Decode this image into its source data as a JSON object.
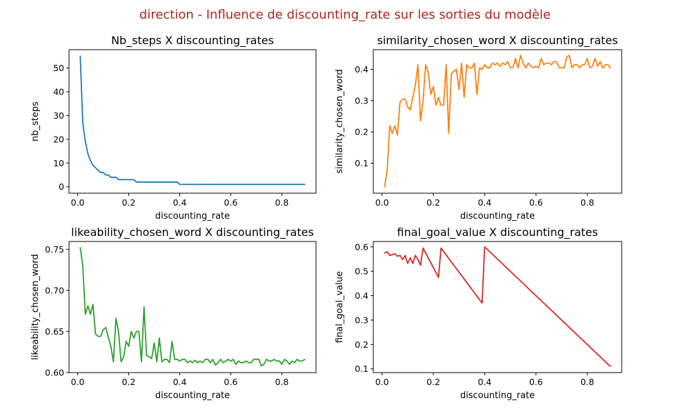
{
  "suptitle": "direction - Influence de discounting_rate sur les sorties du modèle",
  "colors": {
    "suptitle": "#b22222"
  },
  "chart_data": [
    {
      "type": "line",
      "title": "Nb_steps X discounting_rates",
      "xlabel": "discounting_rate",
      "ylabel": "nb_steps",
      "color": "#1f77b4",
      "xlim": [
        -0.034,
        0.934
      ],
      "ylim": [
        -2.7,
        57.7
      ],
      "xticks": [
        0.0,
        0.2,
        0.4,
        0.6,
        0.8
      ],
      "xtick_labels": [
        "0.0",
        "0.2",
        "0.4",
        "0.6",
        "0.8"
      ],
      "yticks": [
        0,
        10,
        20,
        30,
        40,
        50
      ],
      "ytick_labels": [
        "0",
        "10",
        "20",
        "30",
        "40",
        "50"
      ],
      "grid": false,
      "x": [
        0.01,
        0.02,
        0.03,
        0.04,
        0.05,
        0.06,
        0.07,
        0.08,
        0.09,
        0.1,
        0.11,
        0.12,
        0.13,
        0.14,
        0.15,
        0.16,
        0.17,
        0.18,
        0.19,
        0.2,
        0.21,
        0.22,
        0.23,
        0.24,
        0.25,
        0.26,
        0.27,
        0.28,
        0.29,
        0.3,
        0.31,
        0.32,
        0.33,
        0.34,
        0.35,
        0.36,
        0.37,
        0.38,
        0.39,
        0.4,
        0.41,
        0.42,
        0.43,
        0.44,
        0.45,
        0.46,
        0.47,
        0.48,
        0.49,
        0.5,
        0.51,
        0.52,
        0.53,
        0.54,
        0.55,
        0.56,
        0.57,
        0.58,
        0.59,
        0.6,
        0.61,
        0.62,
        0.63,
        0.64,
        0.65,
        0.66,
        0.67,
        0.68,
        0.69,
        0.7,
        0.71,
        0.72,
        0.73,
        0.74,
        0.75,
        0.76,
        0.77,
        0.78,
        0.79,
        0.8,
        0.81,
        0.82,
        0.83,
        0.84,
        0.85,
        0.86,
        0.87,
        0.88,
        0.89
      ],
      "y": [
        55,
        27,
        19,
        14,
        11,
        9,
        8,
        7,
        6,
        6,
        5,
        5,
        4,
        4,
        4,
        3,
        3,
        3,
        3,
        3,
        3,
        3,
        2,
        2,
        2,
        2,
        2,
        2,
        2,
        2,
        2,
        2,
        2,
        2,
        2,
        2,
        2,
        2,
        2,
        1,
        1,
        1,
        1,
        1,
        1,
        1,
        1,
        1,
        1,
        1,
        1,
        1,
        1,
        1,
        1,
        1,
        1,
        1,
        1,
        1,
        1,
        1,
        1,
        1,
        1,
        1,
        1,
        1,
        1,
        1,
        1,
        1,
        1,
        1,
        1,
        1,
        1,
        1,
        1,
        1,
        1,
        1,
        1,
        1,
        1,
        1,
        1,
        1,
        1
      ]
    },
    {
      "type": "line",
      "title": "similarity_chosen_word X discounting_rates",
      "xlabel": "discounting_rate",
      "ylabel": "similarity_chosen_word",
      "color": "#ff7f0e",
      "xlim": [
        -0.034,
        0.934
      ],
      "ylim": [
        0.004,
        0.463
      ],
      "xticks": [
        0.0,
        0.2,
        0.4,
        0.6,
        0.8
      ],
      "xtick_labels": [
        "0.0",
        "0.2",
        "0.4",
        "0.6",
        "0.8"
      ],
      "yticks": [
        0.1,
        0.2,
        0.3,
        0.4
      ],
      "ytick_labels": [
        "0.1",
        "0.2",
        "0.3",
        "0.4"
      ],
      "grid": false,
      "x": [
        0.01,
        0.02,
        0.03,
        0.04,
        0.05,
        0.06,
        0.07,
        0.08,
        0.09,
        0.1,
        0.11,
        0.12,
        0.13,
        0.14,
        0.15,
        0.16,
        0.17,
        0.18,
        0.19,
        0.2,
        0.21,
        0.22,
        0.23,
        0.24,
        0.25,
        0.26,
        0.27,
        0.28,
        0.29,
        0.3,
        0.31,
        0.32,
        0.33,
        0.34,
        0.35,
        0.36,
        0.37,
        0.38,
        0.39,
        0.4,
        0.41,
        0.42,
        0.43,
        0.44,
        0.45,
        0.46,
        0.47,
        0.48,
        0.49,
        0.5,
        0.51,
        0.52,
        0.53,
        0.54,
        0.55,
        0.56,
        0.57,
        0.58,
        0.59,
        0.6,
        0.61,
        0.62,
        0.63,
        0.64,
        0.65,
        0.66,
        0.67,
        0.68,
        0.69,
        0.7,
        0.71,
        0.72,
        0.73,
        0.74,
        0.75,
        0.76,
        0.77,
        0.78,
        0.79,
        0.8,
        0.81,
        0.82,
        0.83,
        0.84,
        0.85,
        0.86,
        0.87,
        0.88,
        0.89
      ],
      "y": [
        0.025,
        0.075,
        0.22,
        0.195,
        0.22,
        0.19,
        0.295,
        0.305,
        0.305,
        0.28,
        0.27,
        0.31,
        0.35,
        0.415,
        0.235,
        0.3,
        0.415,
        0.39,
        0.32,
        0.345,
        0.285,
        0.31,
        0.285,
        0.285,
        0.415,
        0.195,
        0.385,
        0.395,
        0.4,
        0.335,
        0.42,
        0.31,
        0.415,
        0.405,
        0.405,
        0.42,
        0.32,
        0.405,
        0.4,
        0.415,
        0.405,
        0.405,
        0.42,
        0.415,
        0.42,
        0.41,
        0.42,
        0.415,
        0.425,
        0.405,
        0.405,
        0.435,
        0.405,
        0.445,
        0.42,
        0.405,
        0.42,
        0.41,
        0.405,
        0.41,
        0.405,
        0.435,
        0.415,
        0.42,
        0.42,
        0.415,
        0.425,
        0.425,
        0.405,
        0.405,
        0.405,
        0.44,
        0.445,
        0.405,
        0.415,
        0.415,
        0.405,
        0.415,
        0.415,
        0.435,
        0.405,
        0.41,
        0.435,
        0.41,
        0.425,
        0.405,
        0.415,
        0.415,
        0.405
      ]
    },
    {
      "type": "line",
      "title": "likeability_chosen_word X discounting_rates",
      "xlabel": "discounting_rate",
      "ylabel": "likeability_chosen_word",
      "color": "#2ca02c",
      "xlim": [
        -0.034,
        0.934
      ],
      "ylim": [
        0.5999,
        0.7595
      ],
      "xticks": [
        0.0,
        0.2,
        0.4,
        0.6,
        0.8
      ],
      "xtick_labels": [
        "0.0",
        "0.2",
        "0.4",
        "0.6",
        "0.8"
      ],
      "yticks": [
        0.6,
        0.65,
        0.7,
        0.75
      ],
      "ytick_labels": [
        "0.60",
        "0.65",
        "0.70",
        "0.75"
      ],
      "grid": false,
      "x": [
        0.01,
        0.02,
        0.03,
        0.04,
        0.05,
        0.06,
        0.07,
        0.08,
        0.09,
        0.1,
        0.11,
        0.12,
        0.13,
        0.14,
        0.15,
        0.16,
        0.17,
        0.18,
        0.19,
        0.2,
        0.21,
        0.22,
        0.23,
        0.24,
        0.25,
        0.26,
        0.27,
        0.28,
        0.29,
        0.3,
        0.31,
        0.32,
        0.33,
        0.34,
        0.35,
        0.36,
        0.37,
        0.38,
        0.39,
        0.4,
        0.41,
        0.42,
        0.43,
        0.44,
        0.45,
        0.46,
        0.47,
        0.48,
        0.49,
        0.5,
        0.51,
        0.52,
        0.53,
        0.54,
        0.55,
        0.56,
        0.57,
        0.58,
        0.59,
        0.6,
        0.61,
        0.62,
        0.63,
        0.64,
        0.65,
        0.66,
        0.67,
        0.68,
        0.69,
        0.7,
        0.71,
        0.72,
        0.73,
        0.74,
        0.75,
        0.76,
        0.77,
        0.78,
        0.79,
        0.8,
        0.81,
        0.82,
        0.83,
        0.84,
        0.85,
        0.86,
        0.87,
        0.88,
        0.89
      ],
      "y": [
        0.752,
        0.73,
        0.671,
        0.681,
        0.671,
        0.683,
        0.647,
        0.644,
        0.644,
        0.652,
        0.655,
        0.643,
        0.632,
        0.613,
        0.666,
        0.65,
        0.613,
        0.619,
        0.638,
        0.632,
        0.65,
        0.642,
        0.65,
        0.65,
        0.613,
        0.68,
        0.621,
        0.619,
        0.617,
        0.636,
        0.613,
        0.642,
        0.613,
        0.616,
        0.616,
        0.612,
        0.638,
        0.616,
        0.616,
        0.614,
        0.616,
        0.616,
        0.612,
        0.614,
        0.612,
        0.615,
        0.612,
        0.614,
        0.612,
        0.616,
        0.616,
        0.612,
        0.616,
        0.609,
        0.612,
        0.616,
        0.612,
        0.614,
        0.616,
        0.614,
        0.616,
        0.61,
        0.614,
        0.612,
        0.612,
        0.614,
        0.612,
        0.612,
        0.616,
        0.616,
        0.616,
        0.608,
        0.61,
        0.616,
        0.614,
        0.614,
        0.616,
        0.614,
        0.614,
        0.61,
        0.616,
        0.614,
        0.61,
        0.614,
        0.612,
        0.616,
        0.614,
        0.614,
        0.616
      ]
    },
    {
      "type": "line",
      "title": "final_goal_value X discounting_rates",
      "xlabel": "discounting_rate",
      "ylabel": "final_goal_value",
      "color": "#d62728",
      "xlim": [
        -0.034,
        0.934
      ],
      "ylim": [
        0.085,
        0.622
      ],
      "xticks": [
        0.0,
        0.2,
        0.4,
        0.6,
        0.8
      ],
      "xtick_labels": [
        "0.0",
        "0.2",
        "0.4",
        "0.6",
        "0.8"
      ],
      "yticks": [
        0.1,
        0.2,
        0.3,
        0.4,
        0.5,
        0.6
      ],
      "ytick_labels": [
        "0.1",
        "0.2",
        "0.3",
        "0.4",
        "0.5",
        "0.6"
      ],
      "grid": false,
      "x": [
        0.01,
        0.02,
        0.03,
        0.04,
        0.05,
        0.06,
        0.07,
        0.08,
        0.09,
        0.1,
        0.11,
        0.12,
        0.13,
        0.14,
        0.15,
        0.16,
        0.22,
        0.23,
        0.39,
        0.4,
        0.89
      ],
      "y": [
        0.575,
        0.58,
        0.565,
        0.568,
        0.572,
        0.562,
        0.565,
        0.548,
        0.565,
        0.532,
        0.555,
        0.532,
        0.565,
        0.548,
        0.525,
        0.595,
        0.475,
        0.595,
        0.37,
        0.6,
        0.11
      ]
    }
  ]
}
